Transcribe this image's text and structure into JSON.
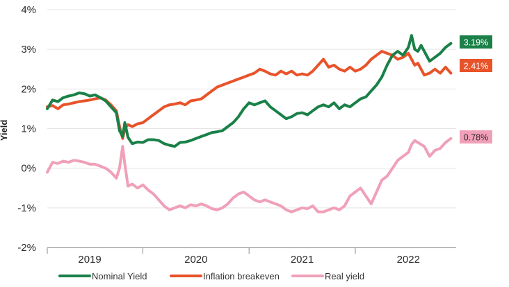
{
  "chart_data": {
    "type": "line",
    "ylabel": "Yield",
    "ylim": [
      -2,
      4
    ],
    "yticks": [
      {
        "value": 4,
        "label": "4%"
      },
      {
        "value": 3,
        "label": "3%"
      },
      {
        "value": 2,
        "label": "2%"
      },
      {
        "value": 1,
        "label": "1%"
      },
      {
        "value": 0,
        "label": "0%"
      },
      {
        "value": -1,
        "label": "-1%"
      },
      {
        "value": -2,
        "label": "-2%"
      }
    ],
    "xlim": [
      2018.6,
      2022.45
    ],
    "xticks": [
      {
        "value": 2019,
        "label": "2019"
      },
      {
        "value": 2020,
        "label": "2020"
      },
      {
        "value": 2021,
        "label": "2021"
      },
      {
        "value": 2022,
        "label": "2022"
      }
    ],
    "grid": "horizontal",
    "legend_position": "bottom",
    "series": [
      {
        "name": "Nominal Yield",
        "color": "#1a8048",
        "end_label": "3.19%",
        "points": [
          [
            2018.6,
            1.5
          ],
          [
            2018.65,
            1.72
          ],
          [
            2018.7,
            1.68
          ],
          [
            2018.75,
            1.78
          ],
          [
            2018.8,
            1.82
          ],
          [
            2018.85,
            1.85
          ],
          [
            2018.9,
            1.9
          ],
          [
            2018.95,
            1.88
          ],
          [
            2019.0,
            1.82
          ],
          [
            2019.05,
            1.85
          ],
          [
            2019.1,
            1.78
          ],
          [
            2019.15,
            1.7
          ],
          [
            2019.2,
            1.55
          ],
          [
            2019.25,
            1.4
          ],
          [
            2019.28,
            0.95
          ],
          [
            2019.31,
            0.8
          ],
          [
            2019.33,
            1.15
          ],
          [
            2019.36,
            0.78
          ],
          [
            2019.4,
            0.62
          ],
          [
            2019.45,
            0.66
          ],
          [
            2019.5,
            0.65
          ],
          [
            2019.55,
            0.72
          ],
          [
            2019.6,
            0.72
          ],
          [
            2019.65,
            0.7
          ],
          [
            2019.7,
            0.62
          ],
          [
            2019.75,
            0.58
          ],
          [
            2019.8,
            0.55
          ],
          [
            2019.85,
            0.65
          ],
          [
            2019.9,
            0.66
          ],
          [
            2019.95,
            0.7
          ],
          [
            2020.0,
            0.75
          ],
          [
            2020.05,
            0.8
          ],
          [
            2020.1,
            0.85
          ],
          [
            2020.15,
            0.9
          ],
          [
            2020.2,
            0.92
          ],
          [
            2020.25,
            0.95
          ],
          [
            2020.3,
            1.05
          ],
          [
            2020.35,
            1.15
          ],
          [
            2020.4,
            1.3
          ],
          [
            2020.45,
            1.5
          ],
          [
            2020.5,
            1.65
          ],
          [
            2020.55,
            1.6
          ],
          [
            2020.6,
            1.65
          ],
          [
            2020.65,
            1.7
          ],
          [
            2020.7,
            1.55
          ],
          [
            2020.75,
            1.45
          ],
          [
            2020.8,
            1.35
          ],
          [
            2020.85,
            1.25
          ],
          [
            2020.9,
            1.3
          ],
          [
            2020.95,
            1.38
          ],
          [
            2021.0,
            1.4
          ],
          [
            2021.05,
            1.35
          ],
          [
            2021.1,
            1.45
          ],
          [
            2021.15,
            1.55
          ],
          [
            2021.2,
            1.6
          ],
          [
            2021.25,
            1.55
          ],
          [
            2021.3,
            1.65
          ],
          [
            2021.35,
            1.5
          ],
          [
            2021.4,
            1.6
          ],
          [
            2021.45,
            1.55
          ],
          [
            2021.5,
            1.65
          ],
          [
            2021.55,
            1.75
          ],
          [
            2021.6,
            1.8
          ],
          [
            2021.65,
            1.95
          ],
          [
            2021.7,
            2.1
          ],
          [
            2021.75,
            2.3
          ],
          [
            2021.8,
            2.6
          ],
          [
            2021.85,
            2.85
          ],
          [
            2021.9,
            2.95
          ],
          [
            2021.95,
            2.85
          ],
          [
            2022.0,
            3.05
          ],
          [
            2022.03,
            3.35
          ],
          [
            2022.06,
            3.0
          ],
          [
            2022.09,
            2.95
          ],
          [
            2022.12,
            3.1
          ],
          [
            2022.15,
            2.95
          ],
          [
            2022.2,
            2.7
          ],
          [
            2022.25,
            2.8
          ],
          [
            2022.3,
            2.9
          ],
          [
            2022.35,
            3.05
          ],
          [
            2022.4,
            3.15
          ]
        ]
      },
      {
        "name": "Inflation breakeven",
        "color": "#e8532a",
        "end_label": "2.41%",
        "points": [
          [
            2018.6,
            1.55
          ],
          [
            2018.65,
            1.58
          ],
          [
            2018.7,
            1.5
          ],
          [
            2018.75,
            1.6
          ],
          [
            2018.8,
            1.62
          ],
          [
            2018.85,
            1.65
          ],
          [
            2018.9,
            1.68
          ],
          [
            2018.95,
            1.7
          ],
          [
            2019.0,
            1.72
          ],
          [
            2019.05,
            1.75
          ],
          [
            2019.1,
            1.78
          ],
          [
            2019.15,
            1.72
          ],
          [
            2019.2,
            1.6
          ],
          [
            2019.25,
            1.45
          ],
          [
            2019.28,
            1.05
          ],
          [
            2019.31,
            0.75
          ],
          [
            2019.33,
            1.0
          ],
          [
            2019.36,
            1.1
          ],
          [
            2019.4,
            1.05
          ],
          [
            2019.45,
            1.12
          ],
          [
            2019.5,
            1.15
          ],
          [
            2019.55,
            1.25
          ],
          [
            2019.6,
            1.35
          ],
          [
            2019.65,
            1.45
          ],
          [
            2019.7,
            1.55
          ],
          [
            2019.75,
            1.6
          ],
          [
            2019.8,
            1.62
          ],
          [
            2019.85,
            1.65
          ],
          [
            2019.9,
            1.6
          ],
          [
            2019.95,
            1.7
          ],
          [
            2020.0,
            1.72
          ],
          [
            2020.05,
            1.75
          ],
          [
            2020.1,
            1.85
          ],
          [
            2020.15,
            1.95
          ],
          [
            2020.2,
            2.05
          ],
          [
            2020.25,
            2.1
          ],
          [
            2020.3,
            2.15
          ],
          [
            2020.35,
            2.2
          ],
          [
            2020.4,
            2.25
          ],
          [
            2020.45,
            2.3
          ],
          [
            2020.5,
            2.35
          ],
          [
            2020.55,
            2.4
          ],
          [
            2020.6,
            2.5
          ],
          [
            2020.65,
            2.45
          ],
          [
            2020.7,
            2.38
          ],
          [
            2020.75,
            2.35
          ],
          [
            2020.8,
            2.45
          ],
          [
            2020.85,
            2.38
          ],
          [
            2020.9,
            2.45
          ],
          [
            2020.95,
            2.35
          ],
          [
            2021.0,
            2.38
          ],
          [
            2021.05,
            2.35
          ],
          [
            2021.1,
            2.45
          ],
          [
            2021.15,
            2.6
          ],
          [
            2021.2,
            2.75
          ],
          [
            2021.25,
            2.55
          ],
          [
            2021.3,
            2.6
          ],
          [
            2021.35,
            2.5
          ],
          [
            2021.4,
            2.45
          ],
          [
            2021.45,
            2.55
          ],
          [
            2021.5,
            2.45
          ],
          [
            2021.55,
            2.5
          ],
          [
            2021.6,
            2.6
          ],
          [
            2021.65,
            2.75
          ],
          [
            2021.7,
            2.85
          ],
          [
            2021.75,
            2.95
          ],
          [
            2021.8,
            2.9
          ],
          [
            2021.85,
            2.85
          ],
          [
            2021.9,
            2.75
          ],
          [
            2021.95,
            2.8
          ],
          [
            2022.0,
            2.9
          ],
          [
            2022.03,
            2.75
          ],
          [
            2022.06,
            2.6
          ],
          [
            2022.09,
            2.65
          ],
          [
            2022.12,
            2.5
          ],
          [
            2022.15,
            2.35
          ],
          [
            2022.2,
            2.4
          ],
          [
            2022.25,
            2.5
          ],
          [
            2022.3,
            2.4
          ],
          [
            2022.35,
            2.55
          ],
          [
            2022.4,
            2.4
          ]
        ]
      },
      {
        "name": "Real yield",
        "color": "#f0a0b8",
        "end_label": "0.78%",
        "points": [
          [
            2018.6,
            -0.1
          ],
          [
            2018.65,
            0.15
          ],
          [
            2018.7,
            0.12
          ],
          [
            2018.75,
            0.18
          ],
          [
            2018.8,
            0.15
          ],
          [
            2018.85,
            0.2
          ],
          [
            2018.9,
            0.18
          ],
          [
            2018.95,
            0.15
          ],
          [
            2019.0,
            0.1
          ],
          [
            2019.05,
            0.1
          ],
          [
            2019.1,
            0.05
          ],
          [
            2019.15,
            0.0
          ],
          [
            2019.2,
            -0.1
          ],
          [
            2019.25,
            -0.25
          ],
          [
            2019.28,
            0.0
          ],
          [
            2019.31,
            0.55
          ],
          [
            2019.33,
            0.1
          ],
          [
            2019.36,
            -0.45
          ],
          [
            2019.4,
            -0.4
          ],
          [
            2019.45,
            -0.5
          ],
          [
            2019.5,
            -0.42
          ],
          [
            2019.55,
            -0.55
          ],
          [
            2019.6,
            -0.65
          ],
          [
            2019.65,
            -0.8
          ],
          [
            2019.7,
            -0.95
          ],
          [
            2019.75,
            -1.05
          ],
          [
            2019.8,
            -1.0
          ],
          [
            2019.85,
            -0.95
          ],
          [
            2019.9,
            -1.0
          ],
          [
            2019.95,
            -0.92
          ],
          [
            2020.0,
            -0.95
          ],
          [
            2020.05,
            -0.9
          ],
          [
            2020.1,
            -0.95
          ],
          [
            2020.15,
            -1.02
          ],
          [
            2020.2,
            -1.05
          ],
          [
            2020.25,
            -1.0
          ],
          [
            2020.3,
            -0.9
          ],
          [
            2020.35,
            -0.75
          ],
          [
            2020.4,
            -0.65
          ],
          [
            2020.45,
            -0.6
          ],
          [
            2020.5,
            -0.7
          ],
          [
            2020.55,
            -0.8
          ],
          [
            2020.6,
            -0.85
          ],
          [
            2020.65,
            -0.8
          ],
          [
            2020.7,
            -0.85
          ],
          [
            2020.75,
            -0.9
          ],
          [
            2020.8,
            -0.95
          ],
          [
            2020.85,
            -1.05
          ],
          [
            2020.9,
            -1.1
          ],
          [
            2020.95,
            -1.05
          ],
          [
            2021.0,
            -1.0
          ],
          [
            2021.05,
            -1.02
          ],
          [
            2021.1,
            -0.95
          ],
          [
            2021.15,
            -1.1
          ],
          [
            2021.2,
            -1.1
          ],
          [
            2021.25,
            -1.05
          ],
          [
            2021.3,
            -1.0
          ],
          [
            2021.35,
            -1.05
          ],
          [
            2021.4,
            -0.95
          ],
          [
            2021.45,
            -0.7
          ],
          [
            2021.5,
            -0.6
          ],
          [
            2021.55,
            -0.5
          ],
          [
            2021.6,
            -0.7
          ],
          [
            2021.65,
            -0.9
          ],
          [
            2021.7,
            -0.6
          ],
          [
            2021.75,
            -0.3
          ],
          [
            2021.8,
            -0.2
          ],
          [
            2021.85,
            0.0
          ],
          [
            2021.9,
            0.2
          ],
          [
            2021.95,
            0.3
          ],
          [
            2022.0,
            0.4
          ],
          [
            2022.03,
            0.6
          ],
          [
            2022.06,
            0.7
          ],
          [
            2022.09,
            0.65
          ],
          [
            2022.12,
            0.6
          ],
          [
            2022.15,
            0.55
          ],
          [
            2022.2,
            0.3
          ],
          [
            2022.25,
            0.45
          ],
          [
            2022.3,
            0.5
          ],
          [
            2022.35,
            0.65
          ],
          [
            2022.4,
            0.75
          ]
        ]
      }
    ]
  }
}
